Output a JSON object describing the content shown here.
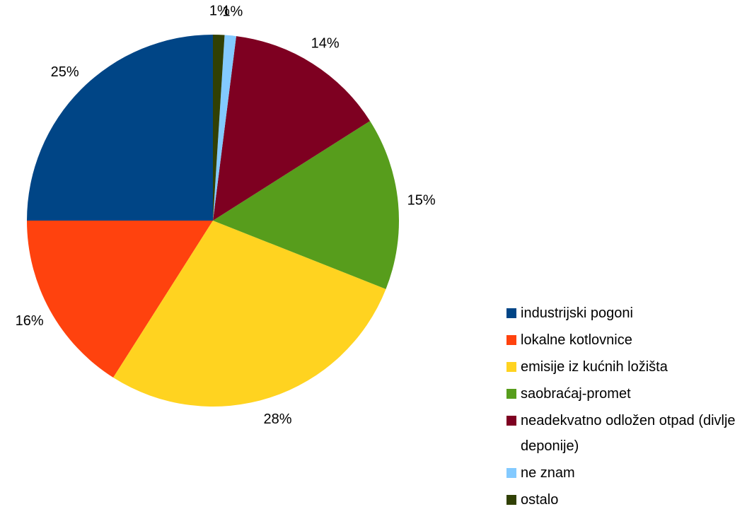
{
  "chart_data": {
    "type": "pie",
    "categories": [
      "industrijski pogoni",
      "lokalne kotlovnice",
      "emisije iz kućnih ložišta",
      "saobraćaj-promet",
      "neadekvatno odložen otpad (divlje deponije)",
      "ne znam",
      "ostalo"
    ],
    "values": [
      25,
      16,
      28,
      15,
      14,
      1,
      1
    ],
    "value_labels": [
      "25%",
      "16%",
      "28%",
      "15%",
      "14%",
      "1%",
      "1%"
    ],
    "colors": [
      "#004586",
      "#ff420e",
      "#ffd320",
      "#579d1c",
      "#7e0021",
      "#83caff",
      "#314004"
    ],
    "legend": "right"
  }
}
